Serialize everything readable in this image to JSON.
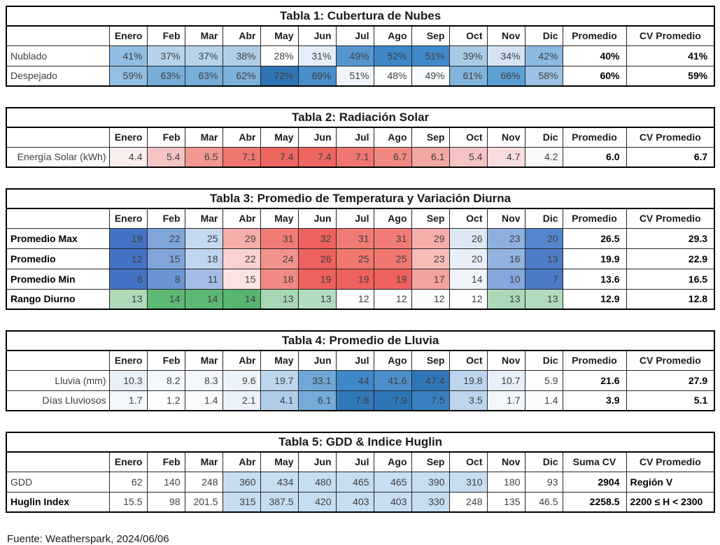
{
  "months": [
    "Enero",
    "Feb",
    "Mar",
    "Abr",
    "May",
    "Jun",
    "Jul",
    "Ago",
    "Sep",
    "Oct",
    "Nov",
    "Dic"
  ],
  "footer": {
    "text": "Fuente: Weatherspark, 2024/06/06"
  },
  "palette": {
    "heat_blue_max": "#2e75b6",
    "heat_red_max": "#ee615e",
    "heat_green_max": "#57b56f",
    "shade_blue": "#c7ddf0",
    "border": "#000000"
  },
  "tables": [
    {
      "name": "tabla-1-cubertura-de-nubes",
      "title": "Tabla 1: Cubertura de Nubes",
      "summary_headers": [
        "Promedio",
        "CV Promedio"
      ],
      "label_align": "left",
      "summary2_align": "right",
      "rows": [
        {
          "label": "Nublado",
          "bold": false,
          "values": [
            "41%",
            "37%",
            "37%",
            "38%",
            "28%",
            "31%",
            "49%",
            "52%",
            "51%",
            "39%",
            "34%",
            "42%"
          ],
          "colors": [
            "#92bee2",
            "#b7d3ec",
            "#b7d3ec",
            "#afcfe9",
            "#fdfefe",
            "#e4eef8",
            "#5596d0",
            "#3d87c8",
            "#4289c9",
            "#a9cbe7",
            "#d3e3f2",
            "#8bbae0"
          ],
          "summary": [
            "40%",
            "41%"
          ]
        },
        {
          "label": "Despejado",
          "bold": false,
          "values": [
            "59%",
            "63%",
            "63%",
            "62%",
            "72%",
            "69%",
            "51%",
            "48%",
            "49%",
            "61%",
            "66%",
            "58%"
          ],
          "colors": [
            "#93bfe2",
            "#77aed9",
            "#77aed9",
            "#7db1db",
            "#2e75b6",
            "#4a8ecb",
            "#eff5fb",
            "#fdfeff",
            "#f8fbfd",
            "#81b4dc",
            "#5c9fd4",
            "#99c2e4"
          ],
          "summary": [
            "60%",
            "59%"
          ]
        }
      ]
    },
    {
      "name": "tabla-2-radiacion-solar",
      "title": "Tabla 2: Radiación Solar",
      "summary_headers": [
        "Promedio",
        "CV Promedio"
      ],
      "label_align": "right",
      "summary2_align": "right",
      "rows": [
        {
          "label": "Energía Solar (kWh)",
          "bold": false,
          "values": [
            "4.4",
            "5.4",
            "6.5",
            "7.1",
            "7.4",
            "7.4",
            "7.1",
            "6.7",
            "6.1",
            "5.4",
            "4.7",
            "4.2"
          ],
          "colors": [
            "#fbeeef",
            "#f6c4c4",
            "#f19893",
            "#ef7770",
            "#ee6660",
            "#ee6660",
            "#ef7770",
            "#f08981",
            "#f3a7a2",
            "#f6c4c4",
            "#faddde",
            "#fbf8f9"
          ],
          "summary": [
            "6.0",
            "6.7"
          ]
        }
      ]
    },
    {
      "name": "tabla-3-temperatura-variacion-diurna",
      "title": "Tabla 3: Promedio de Temperatura y Variación Diurna",
      "summary_headers": [
        "Promedio",
        "CV Promedio"
      ],
      "label_align": "left",
      "summary2_align": "right",
      "rows": [
        {
          "label": "Promedio Max",
          "bold": true,
          "values": [
            "19",
            "22",
            "25",
            "29",
            "31",
            "32",
            "31",
            "31",
            "29",
            "26",
            "23",
            "20"
          ],
          "colors": [
            "#4472c4",
            "#7fa5db",
            "#c5d9f1",
            "#f5aeaa",
            "#f07b74",
            "#ee615e",
            "#f07b74",
            "#f07b74",
            "#f5aeaa",
            "#dde8f5",
            "#8eb0df",
            "#5586cd"
          ],
          "summary": [
            "26.5",
            "29.3"
          ]
        },
        {
          "label": "Promedio",
          "bold": true,
          "values": [
            "12",
            "15",
            "18",
            "22",
            "24",
            "26",
            "25",
            "25",
            "23",
            "20",
            "16",
            "13"
          ],
          "colors": [
            "#4472c4",
            "#7fa5db",
            "#c0d5ef",
            "#fad2d0",
            "#f2928c",
            "#ee615e",
            "#f0786f",
            "#f0786f",
            "#f8bdb9",
            "#e8eff8",
            "#92b3e0",
            "#4e7cc8"
          ],
          "summary": [
            "19.9",
            "22.9"
          ]
        },
        {
          "label": "Promedio Min",
          "bold": true,
          "values": [
            "6",
            "8",
            "11",
            "15",
            "18",
            "19",
            "19",
            "19",
            "17",
            "14",
            "10",
            "7"
          ],
          "colors": [
            "#4472c4",
            "#6a94d3",
            "#a3bde6",
            "#fbe3e2",
            "#f18a83",
            "#ee615e",
            "#ee615e",
            "#ee615e",
            "#f4a29d",
            "#f0f4fa",
            "#84a7dc",
            "#4c7ac7"
          ],
          "summary": [
            "13.6",
            "16.5"
          ]
        },
        {
          "label": "Rango Diurno",
          "bold": true,
          "values": [
            "13",
            "14",
            "14",
            "14",
            "13",
            "13",
            "12",
            "12",
            "12",
            "12",
            "13",
            "13"
          ],
          "colors": [
            "#aedaba",
            "#5cb874",
            "#5cb874",
            "#57b56f",
            "#a6d6b4",
            "#b3ddc0",
            "#fdfefd",
            "#fdfefd",
            "#fbfdfb",
            "#fdfefd",
            "#abd9b8",
            "#b0dbbd"
          ],
          "summary": [
            "12.9",
            "12.8"
          ]
        }
      ]
    },
    {
      "name": "tabla-4-promedio-de-lluvia",
      "title": "Tabla 4: Promedio de Lluvia",
      "summary_headers": [
        "Promedio",
        "CV Promedio"
      ],
      "label_align": "right",
      "summary2_align": "right",
      "rows": [
        {
          "label": "Lluvia (mm)",
          "bold": false,
          "values": [
            "10.3",
            "8.2",
            "8.3",
            "9.6",
            "19.7",
            "33.1",
            "44",
            "41.6",
            "47.4",
            "19.8",
            "10.7",
            "5.9"
          ],
          "colors": [
            "#e9f0f8",
            "#f4f8fc",
            "#f4f8fc",
            "#edf3fa",
            "#bed6ed",
            "#6fa8d8",
            "#3f88c9",
            "#4c90cc",
            "#3076b7",
            "#bdd5ec",
            "#e7eff8",
            "#fefeff"
          ],
          "summary": [
            "21.6",
            "27.9"
          ]
        },
        {
          "label": "Días Lluviosos",
          "bold": false,
          "values": [
            "1.7",
            "1.2",
            "1.4",
            "2.1",
            "4.1",
            "6.1",
            "7.8",
            "7.9",
            "7.5",
            "3.5",
            "1.7",
            "1.4"
          ],
          "colors": [
            "#f3f7fb",
            "#fefeff",
            "#fbfcfe",
            "#ebf2f9",
            "#b0cee9",
            "#74abd8",
            "#3278b8",
            "#2e75b6",
            "#3a80c0",
            "#bdd5ec",
            "#f3f7fb",
            "#fbfcfe"
          ],
          "summary": [
            "3.9",
            "5.1"
          ]
        }
      ]
    },
    {
      "name": "tabla-5-gdd-indice-huglin",
      "title": "Tabla 5: GDD & Indice Huglin",
      "summary_headers": [
        "Suma CV",
        "CV Promedio"
      ],
      "label_align": "left",
      "summary2_align": "left",
      "rows": [
        {
          "label": "GDD",
          "bold": false,
          "values": [
            "62",
            "140",
            "248",
            "360",
            "434",
            "480",
            "465",
            "465",
            "390",
            "310",
            "180",
            "93"
          ],
          "colors": [
            "#ffffff",
            "#ffffff",
            "#ffffff",
            "#c7ddf0",
            "#c7ddf0",
            "#c7ddf0",
            "#c7ddf0",
            "#c7ddf0",
            "#c7ddf0",
            "#c7ddf0",
            "#ffffff",
            "#ffffff"
          ],
          "summary": [
            "2904",
            "Región V"
          ]
        },
        {
          "label": "Huglin Index",
          "bold": true,
          "values": [
            "15.5",
            "98",
            "201.5",
            "315",
            "387.5",
            "420",
            "403",
            "403",
            "330",
            "248",
            "135",
            "46.5"
          ],
          "colors": [
            "#ffffff",
            "#ffffff",
            "#ffffff",
            "#c7ddf0",
            "#c7ddf0",
            "#c7ddf0",
            "#c7ddf0",
            "#c7ddf0",
            "#c7ddf0",
            "#ffffff",
            "#ffffff",
            "#ffffff"
          ],
          "summary": [
            "2258.5",
            "2200 ≤ H < 2300"
          ]
        }
      ]
    }
  ]
}
